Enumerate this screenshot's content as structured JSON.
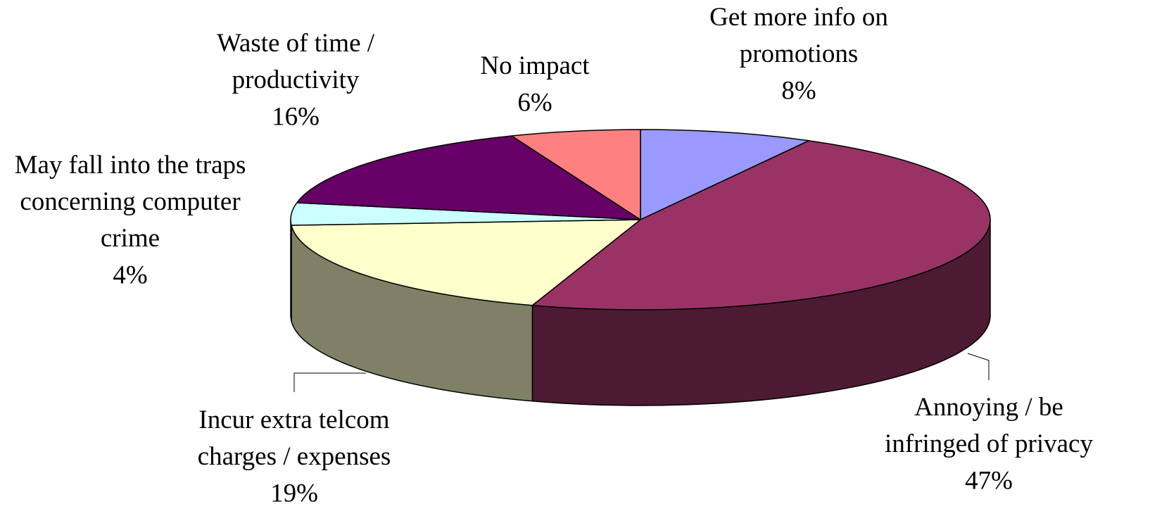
{
  "chart_data": {
    "type": "pie3d",
    "categories": [
      "Get more info on\npromotions",
      "Annoying / be\ninfringed of privacy",
      "Incur extra telcom\ncharges / expenses",
      "May fall into the traps\nconcerning computer\ncrime",
      "Waste of time /\nproductivity",
      "No impact"
    ],
    "values": [
      8,
      47,
      19,
      4,
      16,
      6
    ],
    "value_labels": [
      "8%",
      "47%",
      "19%",
      "4%",
      "16%",
      "6%"
    ],
    "colors": [
      "#9999ff",
      "#993366",
      "#ffffcc",
      "#ccffff",
      "#660066",
      "#ff8080"
    ]
  }
}
